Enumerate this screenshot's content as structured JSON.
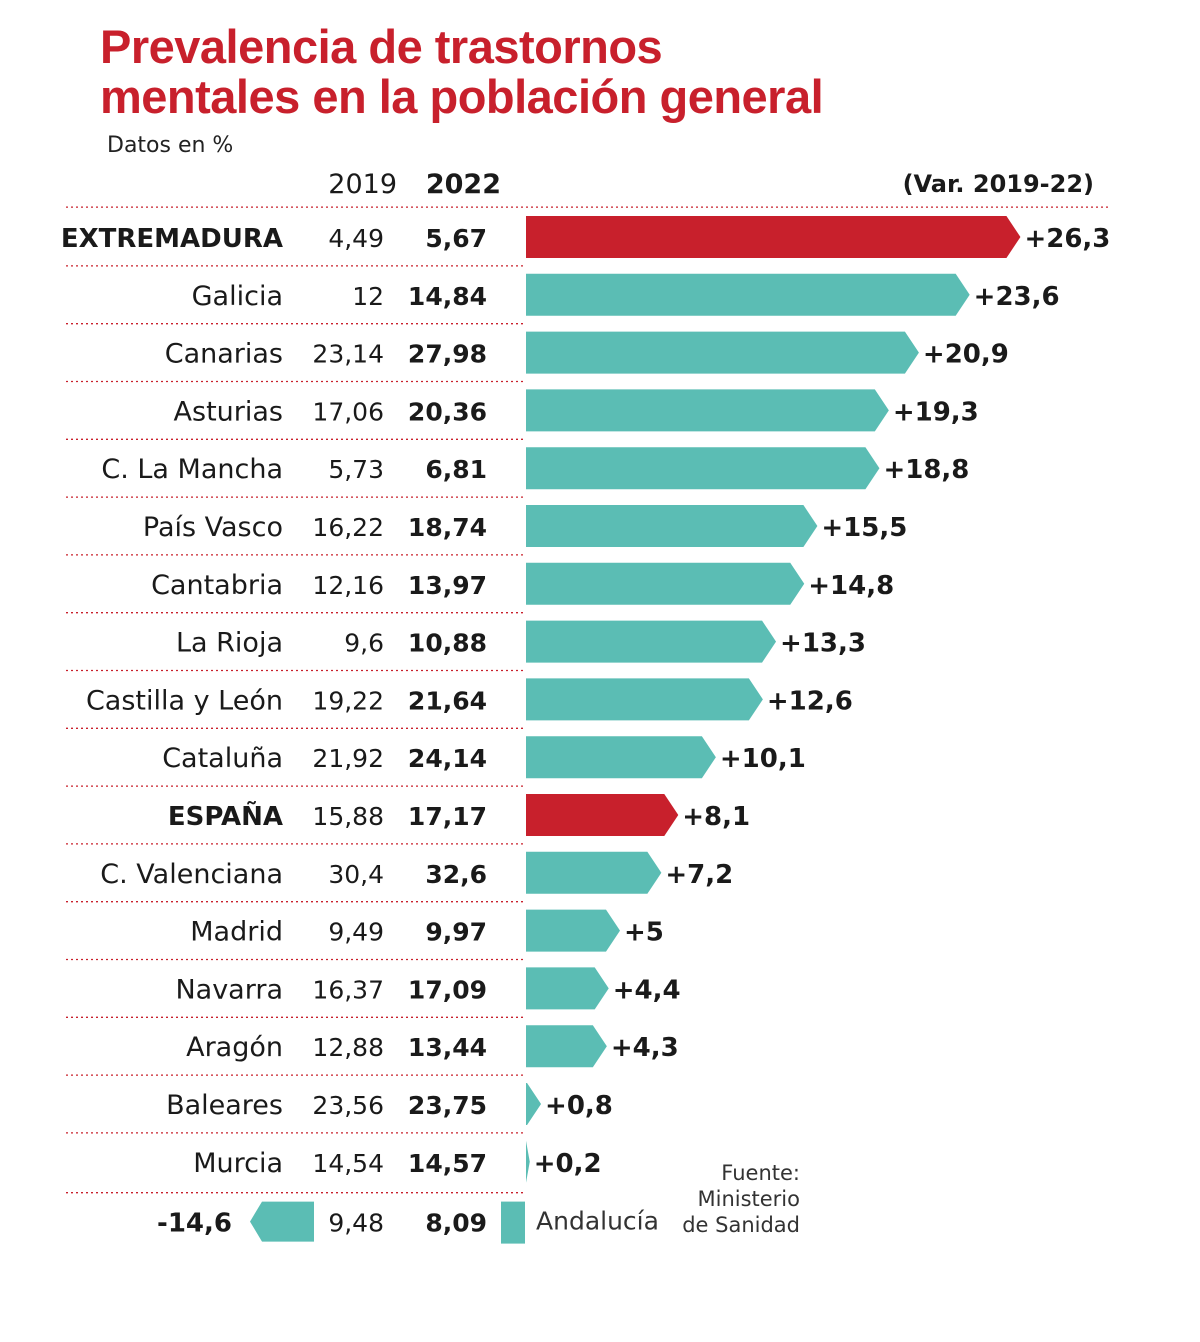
{
  "title_line1": "Prevalencia de trastornos",
  "title_line2": "mentales en la población general",
  "subtitle": "Datos en %",
  "colors": {
    "highlight": "#c8202c",
    "bar": "#5bbdb4",
    "dots": "#c9202c",
    "text": "#1a1a1a"
  },
  "chart_data": {
    "type": "bar",
    "orientation": "horizontal",
    "title": "Prevalencia de trastornos mentales en la población general",
    "subtitle": "Datos en %",
    "column_headers": {
      "y2019": "2019",
      "y2022": "2022",
      "variation": "(Var. 2019-22)"
    },
    "rows": [
      {
        "region": "EXTREMADURA",
        "v2019": "4,49",
        "v2022": "5,67",
        "var": 26.3,
        "var_label": "+26,3",
        "highlight": true
      },
      {
        "region": "Galicia",
        "v2019": "12",
        "v2022": "14,84",
        "var": 23.6,
        "var_label": "+23,6",
        "highlight": false
      },
      {
        "region": "Canarias",
        "v2019": "23,14",
        "v2022": "27,98",
        "var": 20.9,
        "var_label": "+20,9",
        "highlight": false
      },
      {
        "region": "Asturias",
        "v2019": "17,06",
        "v2022": "20,36",
        "var": 19.3,
        "var_label": "+19,3",
        "highlight": false
      },
      {
        "region": "C.  La Mancha",
        "v2019": "5,73",
        "v2022": "6,81",
        "var": 18.8,
        "var_label": "+18,8",
        "highlight": false
      },
      {
        "region": "País Vasco",
        "v2019": "16,22",
        "v2022": "18,74",
        "var": 15.5,
        "var_label": "+15,5",
        "highlight": false
      },
      {
        "region": "Cantabria",
        "v2019": "12,16",
        "v2022": "13,97",
        "var": 14.8,
        "var_label": "+14,8",
        "highlight": false
      },
      {
        "region": "La Rioja",
        "v2019": "9,6",
        "v2022": "10,88",
        "var": 13.3,
        "var_label": "+13,3",
        "highlight": false
      },
      {
        "region": "Castilla y León",
        "v2019": "19,22",
        "v2022": "21,64",
        "var": 12.6,
        "var_label": "+12,6",
        "highlight": false
      },
      {
        "region": "Cataluña",
        "v2019": "21,92",
        "v2022": "24,14",
        "var": 10.1,
        "var_label": "+10,1",
        "highlight": false
      },
      {
        "region": "ESPAÑA",
        "v2019": "15,88",
        "v2022": "17,17",
        "var": 8.1,
        "var_label": "+8,1",
        "highlight": true
      },
      {
        "region": "C. Valenciana",
        "v2019": "30,4",
        "v2022": "32,6",
        "var": 7.2,
        "var_label": "+7,2",
        "highlight": false
      },
      {
        "region": "Madrid",
        "v2019": "9,49",
        "v2022": "9,97",
        "var": 5,
        "var_label": "+5",
        "highlight": false
      },
      {
        "region": "Navarra",
        "v2019": "16,37",
        "v2022": "17,09",
        "var": 4.4,
        "var_label": "+4,4",
        "highlight": false
      },
      {
        "region": "Aragón",
        "v2019": "12,88",
        "v2022": "13,44",
        "var": 4.3,
        "var_label": "+4,3",
        "highlight": false
      },
      {
        "region": "Baleares",
        "v2019": "23,56",
        "v2022": "23,75",
        "var": 0.8,
        "var_label": "+0,8",
        "highlight": false
      },
      {
        "region": "Murcia",
        "v2019": "14,54",
        "v2022": "14,57",
        "var": 0.2,
        "var_label": "+0,2",
        "highlight": false
      }
    ],
    "negative_row": {
      "region": "Andalucía",
      "v2019": "9,48",
      "v2022": "8,09",
      "var": -14.6,
      "var_label": "-14,6"
    },
    "source": [
      "Fuente:",
      "Ministerio",
      "de Sanidad"
    ]
  }
}
